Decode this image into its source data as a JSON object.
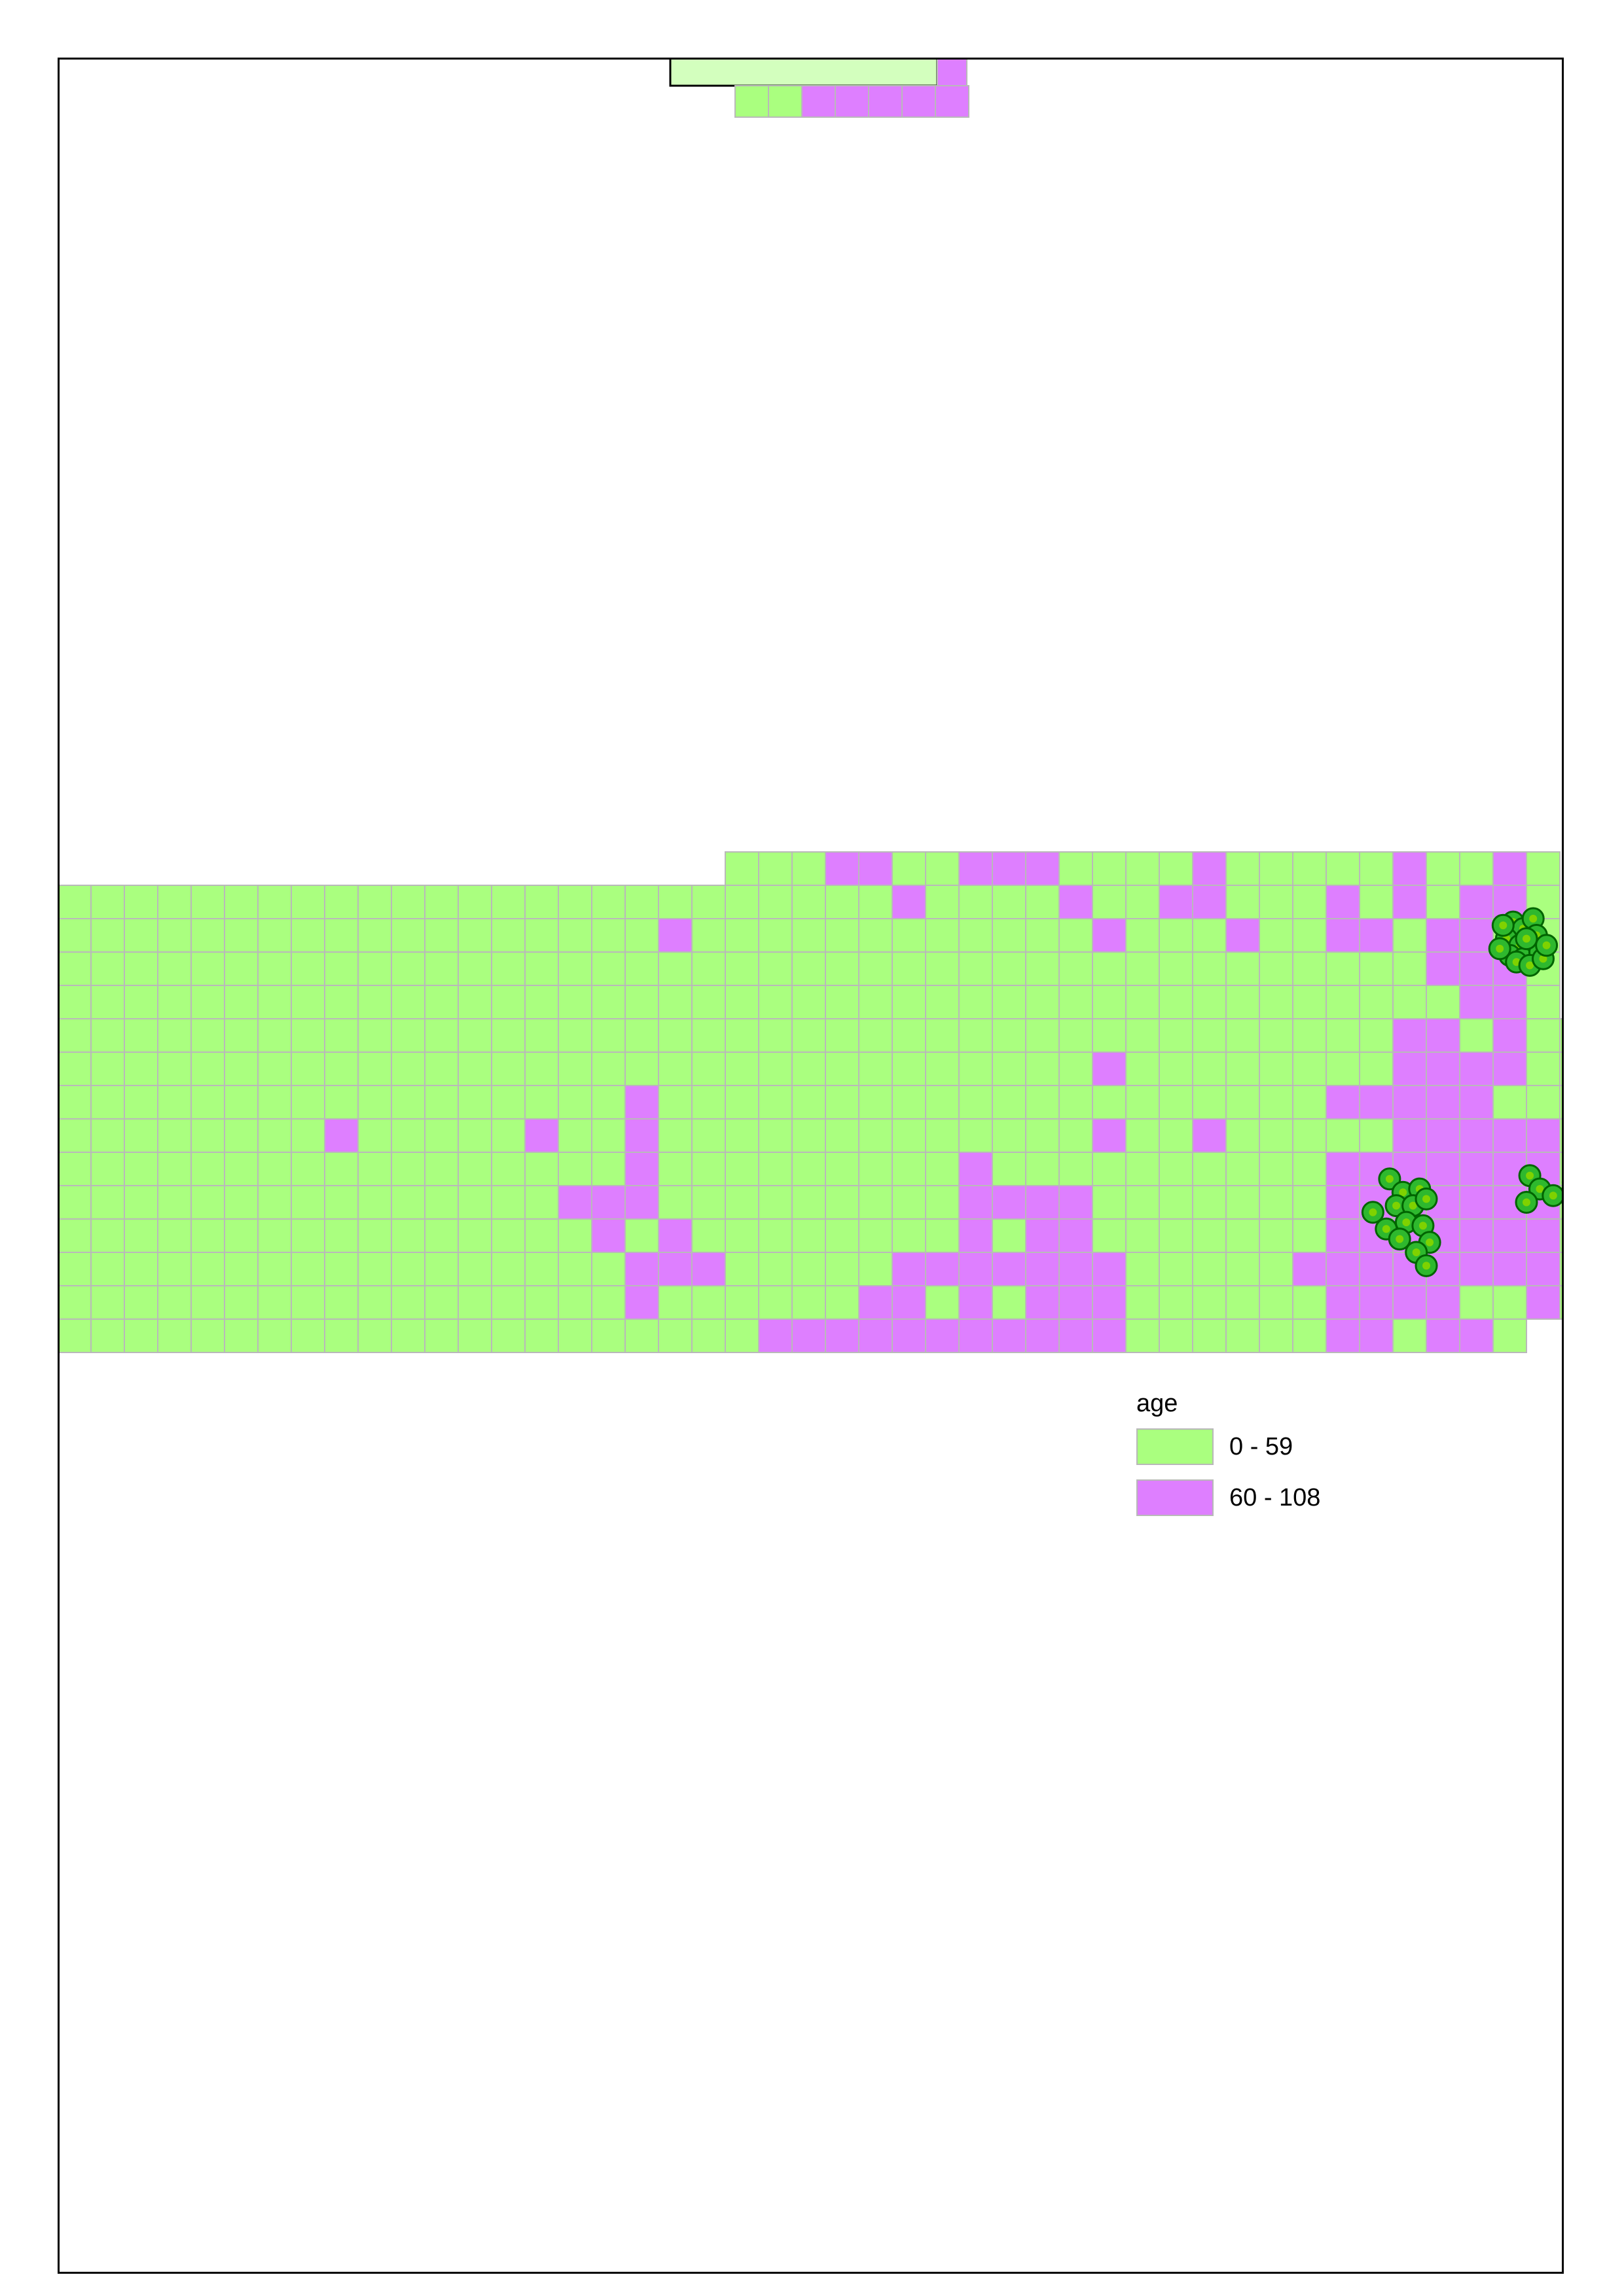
{
  "legend": {
    "title": "age",
    "classes": [
      {
        "label": "0 - 59",
        "color": "#aaff7f"
      },
      {
        "label": "60 - 108",
        "color": "#de7fff"
      }
    ]
  },
  "colors": {
    "grid_line": "#b9b9b9",
    "point_fill": "#2eb82e",
    "point_inner": "#7fd200",
    "point_stroke": "#006400",
    "inset_fill": "#d3ffbe",
    "frame": "#000000"
  },
  "map": {
    "description_of_layers": [
      "grid cells classified by age",
      "point features"
    ],
    "grid": {
      "rows": 15,
      "cols": 45,
      "row_extents": [
        [
          20,
          44
        ],
        [
          0,
          44
        ],
        [
          0,
          44
        ],
        [
          0,
          44
        ],
        [
          0,
          44
        ],
        [
          0,
          45
        ],
        [
          0,
          45
        ],
        [
          0,
          45
        ],
        [
          0,
          45
        ],
        [
          0,
          45
        ],
        [
          0,
          45
        ],
        [
          0,
          45
        ],
        [
          0,
          45
        ],
        [
          0,
          45
        ],
        [
          0,
          43
        ]
      ],
      "class2_cells": [
        [
          0,
          23
        ],
        [
          0,
          24
        ],
        [
          0,
          27
        ],
        [
          0,
          28
        ],
        [
          0,
          29
        ],
        [
          0,
          34
        ],
        [
          0,
          40
        ],
        [
          0,
          43
        ],
        [
          1,
          25
        ],
        [
          1,
          30
        ],
        [
          1,
          33
        ],
        [
          1,
          34
        ],
        [
          1,
          38
        ],
        [
          1,
          40
        ],
        [
          1,
          42
        ],
        [
          1,
          43
        ],
        [
          2,
          18
        ],
        [
          2,
          31
        ],
        [
          2,
          35
        ],
        [
          2,
          38
        ],
        [
          2,
          39
        ],
        [
          2,
          41
        ],
        [
          2,
          42
        ],
        [
          3,
          41
        ],
        [
          3,
          42
        ],
        [
          3,
          43
        ],
        [
          4,
          42
        ],
        [
          4,
          43
        ],
        [
          5,
          40
        ],
        [
          5,
          41
        ],
        [
          5,
          43
        ],
        [
          6,
          31
        ],
        [
          6,
          40
        ],
        [
          6,
          41
        ],
        [
          6,
          42
        ],
        [
          6,
          43
        ],
        [
          7,
          17
        ],
        [
          7,
          38
        ],
        [
          7,
          39
        ],
        [
          7,
          40
        ],
        [
          7,
          41
        ],
        [
          7,
          42
        ],
        [
          8,
          8
        ],
        [
          8,
          14
        ],
        [
          8,
          17
        ],
        [
          8,
          31
        ],
        [
          8,
          34
        ],
        [
          8,
          40
        ],
        [
          8,
          41
        ],
        [
          8,
          42
        ],
        [
          8,
          43
        ],
        [
          8,
          44
        ],
        [
          9,
          17
        ],
        [
          9,
          27
        ],
        [
          9,
          38
        ],
        [
          9,
          39
        ],
        [
          9,
          40
        ],
        [
          9,
          41
        ],
        [
          9,
          42
        ],
        [
          9,
          43
        ],
        [
          9,
          44
        ],
        [
          10,
          15
        ],
        [
          10,
          16
        ],
        [
          10,
          17
        ],
        [
          10,
          27
        ],
        [
          10,
          28
        ],
        [
          10,
          29
        ],
        [
          10,
          30
        ],
        [
          10,
          38
        ],
        [
          10,
          39
        ],
        [
          10,
          40
        ],
        [
          10,
          41
        ],
        [
          10,
          42
        ],
        [
          10,
          43
        ],
        [
          10,
          44
        ],
        [
          11,
          16
        ],
        [
          11,
          18
        ],
        [
          11,
          27
        ],
        [
          11,
          29
        ],
        [
          11,
          30
        ],
        [
          11,
          38
        ],
        [
          11,
          39
        ],
        [
          11,
          40
        ],
        [
          11,
          41
        ],
        [
          11,
          42
        ],
        [
          11,
          43
        ],
        [
          11,
          44
        ],
        [
          12,
          17
        ],
        [
          12,
          18
        ],
        [
          12,
          19
        ],
        [
          12,
          25
        ],
        [
          12,
          26
        ],
        [
          12,
          27
        ],
        [
          12,
          28
        ],
        [
          12,
          29
        ],
        [
          12,
          30
        ],
        [
          12,
          31
        ],
        [
          12,
          37
        ],
        [
          12,
          38
        ],
        [
          12,
          39
        ],
        [
          12,
          40
        ],
        [
          12,
          41
        ],
        [
          12,
          42
        ],
        [
          12,
          43
        ],
        [
          12,
          44
        ],
        [
          13,
          17
        ],
        [
          13,
          24
        ],
        [
          13,
          25
        ],
        [
          13,
          27
        ],
        [
          13,
          29
        ],
        [
          13,
          30
        ],
        [
          13,
          31
        ],
        [
          13,
          38
        ],
        [
          13,
          39
        ],
        [
          13,
          40
        ],
        [
          13,
          41
        ],
        [
          13,
          44
        ],
        [
          14,
          21
        ],
        [
          14,
          22
        ],
        [
          14,
          23
        ],
        [
          14,
          24
        ],
        [
          14,
          25
        ],
        [
          14,
          26
        ],
        [
          14,
          27
        ],
        [
          14,
          28
        ],
        [
          14,
          29
        ],
        [
          14,
          30
        ],
        [
          14,
          31
        ],
        [
          14,
          38
        ],
        [
          14,
          39
        ],
        [
          14,
          41
        ],
        [
          14,
          42
        ]
      ],
      "top_strip": {
        "cols": 7,
        "classes": [
          1,
          1,
          2,
          2,
          2,
          2,
          2
        ]
      }
    },
    "points": [
      [
        43.6,
        2.1
      ],
      [
        43.9,
        2.3
      ],
      [
        44.2,
        2.0
      ],
      [
        43.4,
        2.6
      ],
      [
        43.8,
        2.8
      ],
      [
        44.3,
        2.5
      ],
      [
        43.5,
        3.1
      ],
      [
        43.9,
        3.2
      ],
      [
        44.4,
        3.0
      ],
      [
        43.2,
        2.9
      ],
      [
        44.0,
        2.6
      ],
      [
        43.7,
        3.3
      ],
      [
        44.1,
        3.4
      ],
      [
        44.5,
        3.2
      ],
      [
        43.3,
        2.2
      ],
      [
        44.6,
        2.8
      ],
      [
        39.9,
        9.8
      ],
      [
        40.3,
        10.2
      ],
      [
        40.8,
        10.1
      ],
      [
        40.1,
        10.6
      ],
      [
        40.6,
        10.6
      ],
      [
        41.0,
        10.4
      ],
      [
        39.4,
        10.8
      ],
      [
        39.8,
        11.3
      ],
      [
        40.4,
        11.1
      ],
      [
        40.9,
        11.2
      ],
      [
        41.1,
        11.7
      ],
      [
        40.7,
        12.0
      ],
      [
        40.2,
        11.6
      ],
      [
        41.0,
        12.4
      ],
      [
        44.1,
        9.7
      ],
      [
        44.4,
        10.1
      ],
      [
        44.8,
        10.3
      ],
      [
        45.4,
        9.9
      ],
      [
        45.7,
        9.4
      ],
      [
        45.9,
        9.1
      ],
      [
        44.0,
        10.5
      ],
      [
        46.1,
        10.9
      ],
      [
        45.9,
        11.2
      ]
    ]
  }
}
